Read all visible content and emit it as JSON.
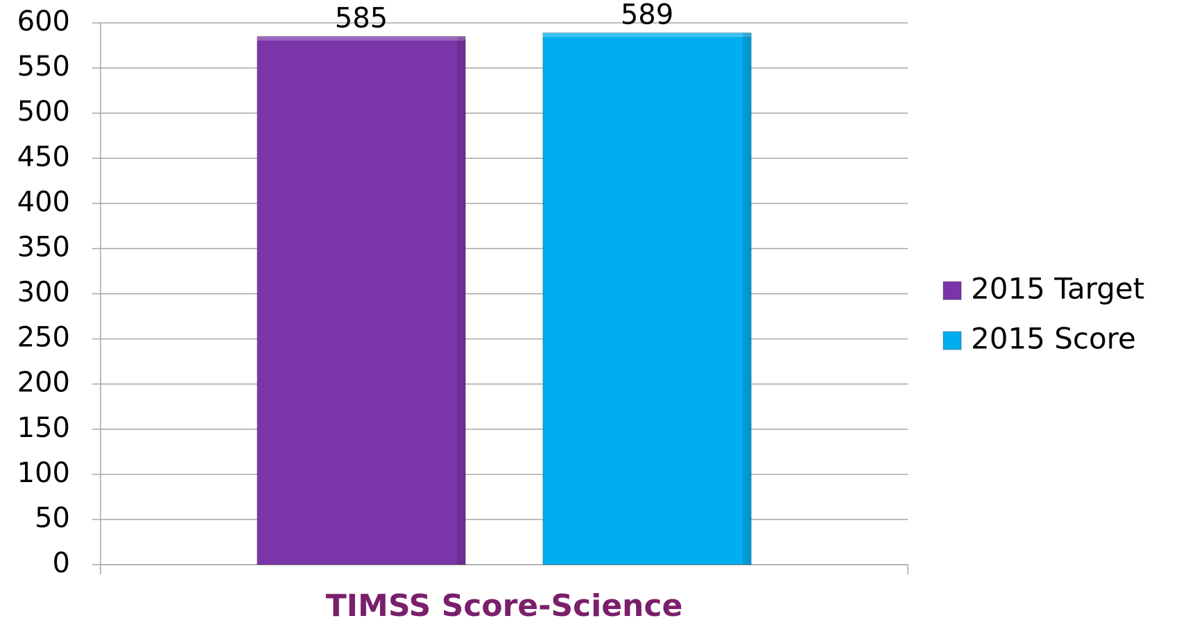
{
  "chart_data": {
    "type": "bar",
    "categories": [
      "TIMSS Score-Science"
    ],
    "series": [
      {
        "name": "2015 Target",
        "color": "#7a35a8",
        "values": [
          585
        ]
      },
      {
        "name": "2015 Score",
        "color": "#00aeef",
        "values": [
          589
        ]
      }
    ],
    "ylim": [
      0,
      600
    ],
    "yticks": [
      0,
      50,
      100,
      150,
      200,
      250,
      300,
      350,
      400,
      450,
      500,
      550,
      600
    ],
    "grid": true,
    "legend": "right"
  }
}
